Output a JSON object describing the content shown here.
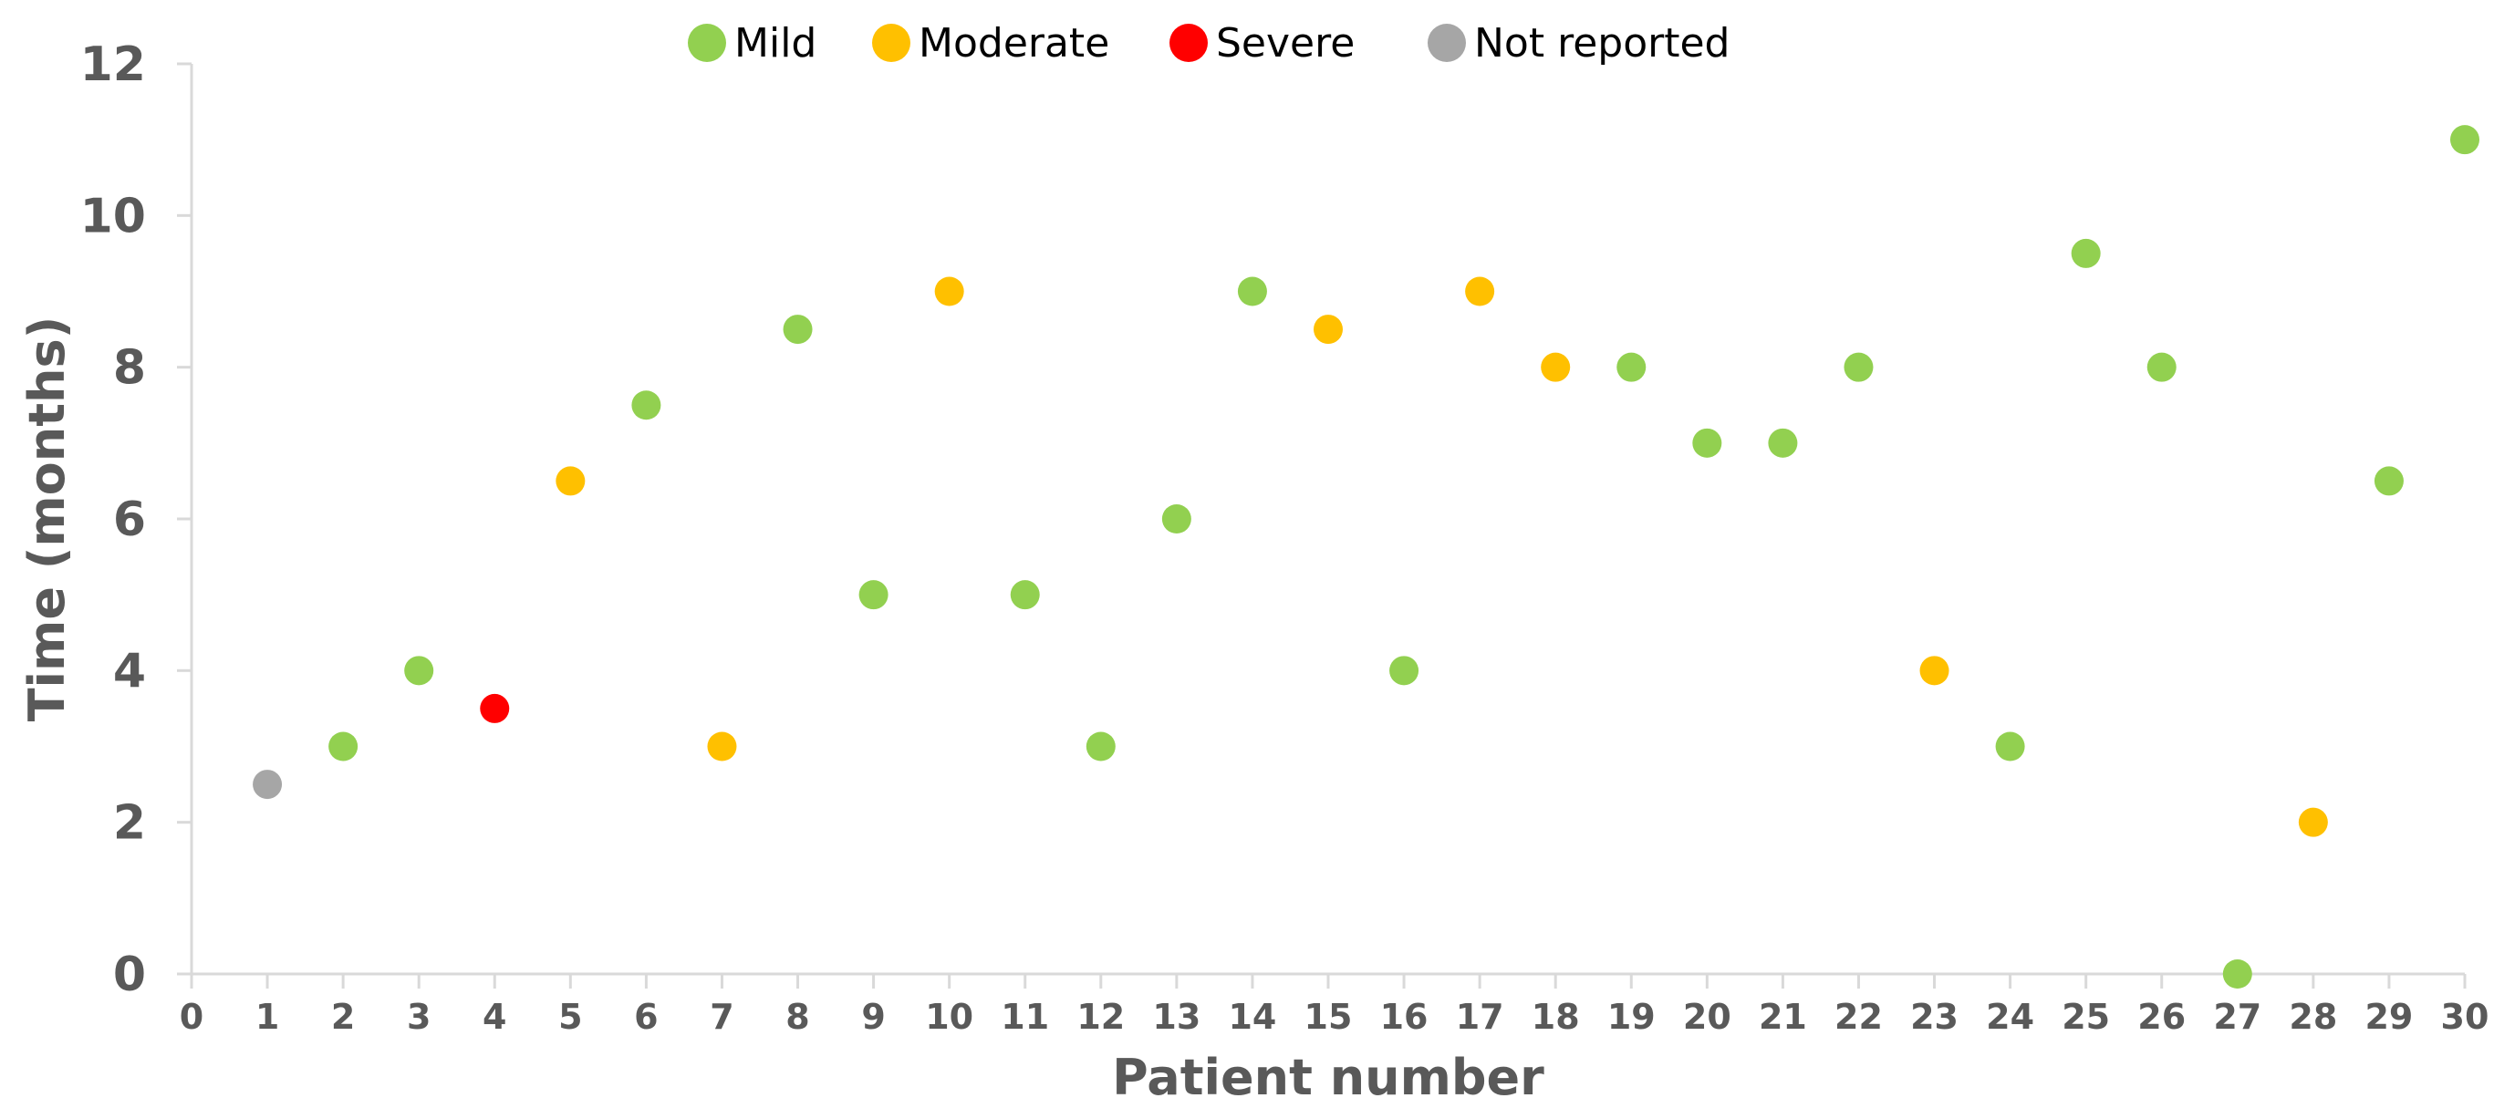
{
  "chart_data": {
    "type": "scatter",
    "title": "",
    "xlabel": "Patient number",
    "ylabel": "Time (months)",
    "xlim": [
      0,
      30
    ],
    "ylim": [
      0,
      12
    ],
    "x_ticks": [
      0,
      1,
      2,
      3,
      4,
      5,
      6,
      7,
      8,
      9,
      10,
      11,
      12,
      13,
      14,
      15,
      16,
      17,
      18,
      19,
      20,
      21,
      22,
      23,
      24,
      25,
      26,
      27,
      28,
      29,
      30
    ],
    "y_ticks": [
      0,
      2,
      4,
      6,
      8,
      10,
      12
    ],
    "grid": false,
    "legend_position": "top",
    "series": [
      {
        "name": "Mild",
        "color": "#92d050",
        "x": [
          2,
          3,
          6,
          8,
          9,
          11,
          12,
          13,
          14,
          16,
          19,
          20,
          21,
          22,
          24,
          25,
          26,
          27,
          29,
          30
        ],
        "y": [
          3,
          4,
          7.5,
          8.5,
          5,
          5,
          3,
          6,
          9,
          4,
          8,
          7,
          7,
          8,
          3,
          9.5,
          8,
          0,
          6.5,
          11
        ]
      },
      {
        "name": "Moderate",
        "color": "#ffc000",
        "x": [
          5,
          7,
          10,
          15,
          17,
          18,
          23,
          28
        ],
        "y": [
          6.5,
          3,
          9,
          8.5,
          9,
          8,
          4,
          2
        ]
      },
      {
        "name": "Severe",
        "color": "#ff0000",
        "x": [
          4
        ],
        "y": [
          3.5
        ]
      },
      {
        "name": "Not reported",
        "color": "#a6a6a6",
        "x": [
          1
        ],
        "y": [
          2.5
        ]
      }
    ]
  }
}
